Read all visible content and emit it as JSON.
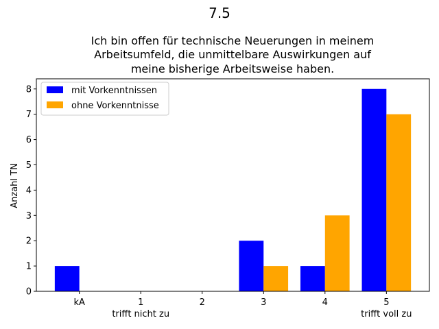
{
  "chart_data": {
    "type": "bar",
    "suptitle": "7.5",
    "title_lines": [
      "Ich bin offen für technische Neuerungen in meinem",
      "Arbeitsumfeld, die unmittelbare Auswirkungen auf",
      "meine bisherige Arbeitsweise haben."
    ],
    "xlabel": "",
    "ylabel": "Anzahl TN",
    "categories": [
      "kA",
      "1",
      "2",
      "3",
      "4",
      "5"
    ],
    "category_sublabels": [
      "",
      "trifft nicht zu",
      "",
      "",
      "",
      "trifft voll zu"
    ],
    "series": [
      {
        "name": "mit Vorkenntnissen",
        "color": "#0000ff",
        "values": [
          1,
          0,
          0,
          2,
          1,
          8
        ]
      },
      {
        "name": "ohne Vorkenntnisse",
        "color": "#ffa500",
        "values": [
          0,
          0,
          0,
          1,
          3,
          7
        ]
      }
    ],
    "ylim": [
      0,
      8.4
    ],
    "yticks": [
      0,
      1,
      2,
      3,
      4,
      5,
      6,
      7,
      8
    ],
    "grid": false,
    "legend_position": "top-left"
  }
}
